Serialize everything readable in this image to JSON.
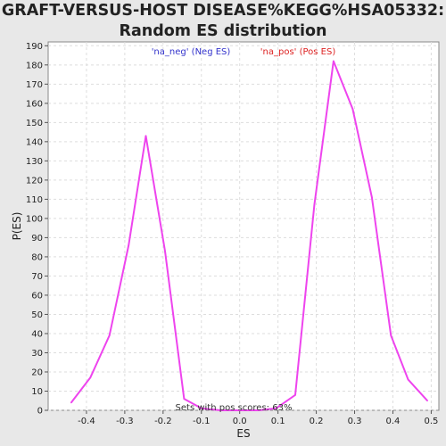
{
  "chart_data": {
    "type": "line",
    "title_lines": [
      "GRAFT-VERSUS-HOST DISEASE%KEGG%HSA05332:",
      "Random ES distribution"
    ],
    "xlabel": "ES",
    "ylabel": "P(ES)",
    "xlim": [
      -0.5,
      0.52
    ],
    "ylim": [
      0,
      192
    ],
    "x_ticks": [
      -0.4,
      -0.3,
      -0.2,
      -0.1,
      0.0,
      0.1,
      0.2,
      0.3,
      0.4,
      0.5
    ],
    "x_tick_labels": [
      "-0.4",
      "-0.3",
      "-0.2",
      "-0.1",
      "0.0",
      "0.1",
      "0.2",
      "0.3",
      "0.4",
      "0.5"
    ],
    "y_ticks": [
      0,
      10,
      20,
      30,
      40,
      50,
      60,
      70,
      80,
      90,
      100,
      110,
      120,
      130,
      140,
      150,
      160,
      170,
      180,
      190
    ],
    "y_tick_labels": [
      "0",
      "10",
      "20",
      "30",
      "40",
      "50",
      "60",
      "70",
      "80",
      "90",
      "100",
      "110",
      "120",
      "130",
      "140",
      "150",
      "160",
      "170",
      "180",
      "190"
    ],
    "grid": true,
    "legend": [
      {
        "label": "'na_neg' (Neg ES)",
        "color": "#3333cc"
      },
      {
        "label": "'na_pos' (Pos ES)",
        "color": "#dd2222"
      }
    ],
    "annotation": "Sets with pos scores: 63%",
    "series": [
      {
        "color": "#ee44ee",
        "x": [
          -0.44,
          -0.39,
          -0.34,
          -0.29,
          -0.245,
          -0.195,
          -0.145,
          -0.1,
          -0.05,
          0.0,
          0.05,
          0.095,
          0.145,
          0.195,
          0.245,
          0.295,
          0.345,
          0.395,
          0.44,
          0.49
        ],
        "y": [
          4,
          17,
          39,
          86,
          143,
          83,
          6,
          1,
          0,
          0,
          0,
          1,
          8,
          107,
          182,
          157,
          111,
          39,
          16,
          5
        ]
      }
    ]
  }
}
